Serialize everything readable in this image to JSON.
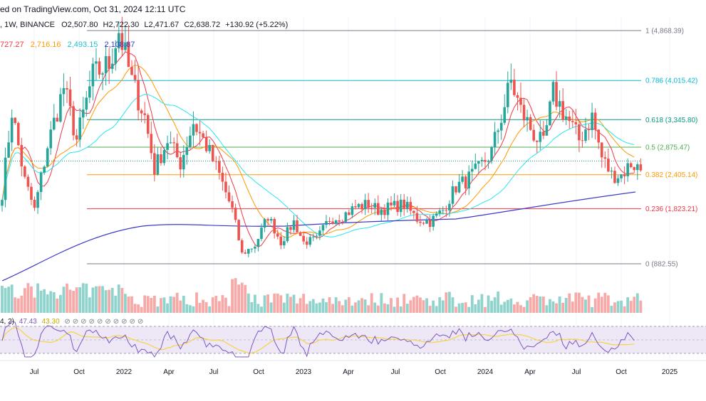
{
  "header": {
    "publish_line": "ed on TradingView.com, Oct 31, 2024 12:11 UTC",
    "symbol_line": ", 1W, BINANCE",
    "ohlc": {
      "o": "O2,507.80",
      "h": "H2,722.30",
      "l": "L2,471.67",
      "c": "C2,638.72",
      "change": "+130.92 (+5.22%)"
    },
    "ma_values": [
      "727.27",
      "2,716.16",
      "2,493.15",
      "2,108.87"
    ],
    "rsi_label": "4, 2)",
    "rsi_values": [
      "47.43",
      "43.30"
    ]
  },
  "colors": {
    "up": "#26a69a",
    "down": "#ef5350",
    "up_vol": "#8fd3cc",
    "down_vol": "#f7a9a7",
    "ma_red": "#f23645",
    "ma_orange": "#ff9800",
    "ma_cyan": "#26e6f0",
    "ma_navy": "#3d39c7",
    "rsi_line": "#7e57c2",
    "rsi_ma": "#f5d547",
    "rsi_band": "#ede7f6"
  },
  "chart_data": {
    "type": "candlestick",
    "symbol": "BINANCE",
    "timeframe": "1W",
    "x_ticks": [
      "Jul",
      "Oct",
      "2022",
      "Apr",
      "Jul",
      "Oct",
      "2023",
      "Apr",
      "Jul",
      "Oct",
      "2024",
      "Apr",
      "Jul",
      "Oct",
      "2025"
    ],
    "fib_levels": [
      {
        "ratio": "1",
        "price": 4868.39,
        "label": "1 (4,868.39)",
        "color": "#787b86"
      },
      {
        "ratio": "0.786",
        "price": 4015.42,
        "label": "0.786 (4,015.42)",
        "color": "#00bcd4"
      },
      {
        "ratio": "0.618",
        "price": 3345.8,
        "label": "0.618 (3,345.80)",
        "color": "#089981"
      },
      {
        "ratio": "0.5",
        "price": 2875.47,
        "label": "0.5 (2,875.47)",
        "color": "#4caf50"
      },
      {
        "ratio": "0.382",
        "price": 2405.14,
        "label": "0.382 (2,405.14)",
        "color": "#ff9800"
      },
      {
        "ratio": "0.236",
        "price": 1823.21,
        "label": "0.236 (1,823.21)",
        "color": "#f23645"
      },
      {
        "ratio": "0",
        "price": 882.55,
        "label": "0 (882.55)",
        "color": "#787b86"
      }
    ],
    "price_anchors": [
      [
        0,
        2100
      ],
      [
        3,
        3500
      ],
      [
        7,
        2300
      ],
      [
        10,
        1800
      ],
      [
        14,
        2900
      ],
      [
        19,
        3900
      ],
      [
        23,
        3000
      ],
      [
        28,
        4100
      ],
      [
        33,
        4300
      ],
      [
        36,
        4868
      ],
      [
        40,
        4000
      ],
      [
        44,
        3400
      ],
      [
        47,
        2500
      ],
      [
        51,
        3000
      ],
      [
        55,
        2600
      ],
      [
        59,
        3300
      ],
      [
        63,
        2900
      ],
      [
        67,
        2400
      ],
      [
        71,
        1800
      ],
      [
        74,
        1050
      ],
      [
        78,
        1200
      ],
      [
        82,
        1700
      ],
      [
        86,
        1250
      ],
      [
        90,
        1600
      ],
      [
        93,
        1250
      ],
      [
        97,
        1300
      ],
      [
        101,
        1650
      ],
      [
        105,
        1700
      ],
      [
        109,
        1850
      ],
      [
        113,
        1900
      ],
      [
        116,
        1800
      ],
      [
        120,
        1850
      ],
      [
        124,
        1900
      ],
      [
        128,
        1650
      ],
      [
        132,
        1600
      ],
      [
        136,
        1800
      ],
      [
        140,
        2200
      ],
      [
        143,
        2300
      ],
      [
        147,
        2500
      ],
      [
        151,
        2800
      ],
      [
        155,
        3600
      ],
      [
        157,
        4000
      ],
      [
        160,
        3500
      ],
      [
        164,
        3100
      ],
      [
        167,
        2900
      ],
      [
        170,
        3800
      ],
      [
        174,
        3400
      ],
      [
        178,
        3000
      ],
      [
        182,
        3400
      ],
      [
        185,
        2700
      ],
      [
        188,
        2400
      ],
      [
        191,
        2400
      ],
      [
        194,
        2600
      ],
      [
        197,
        2500
      ]
    ]
  }
}
